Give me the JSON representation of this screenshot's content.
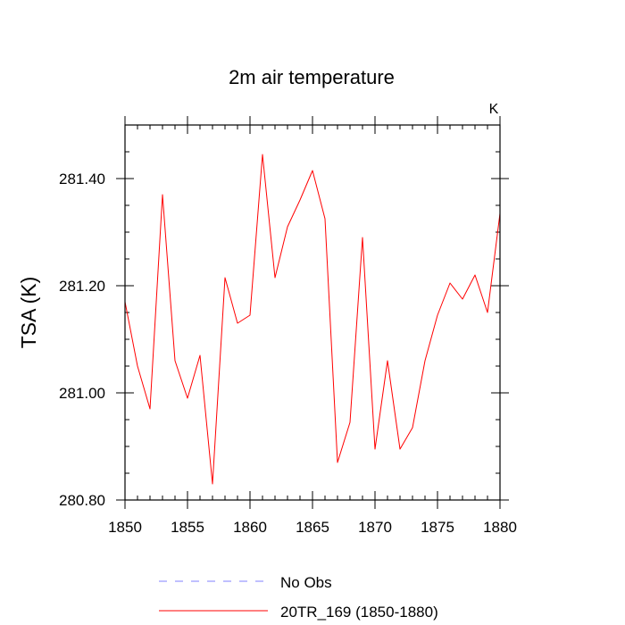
{
  "chart_data": {
    "type": "line",
    "title": "2m air temperature",
    "units_label": "K",
    "ylabel": "TSA  (K)",
    "xlabel": "",
    "xlim": [
      1850,
      1880
    ],
    "ylim": [
      280.8,
      281.5
    ],
    "x_ticks": [
      1850,
      1855,
      1860,
      1865,
      1870,
      1875,
      1880
    ],
    "x_tick_labels": [
      "1850",
      "1855",
      "1860",
      "1865",
      "1870",
      "1875",
      "1880"
    ],
    "y_ticks": [
      280.8,
      281.0,
      281.2,
      281.4
    ],
    "y_tick_labels": [
      "280.80",
      "281.00",
      "281.20",
      "281.40"
    ],
    "grid": false,
    "legend_position": "bottom",
    "series": [
      {
        "name": "20TR_169 (1850-1880)",
        "color": "#ff0000",
        "style": "solid",
        "x": [
          1850,
          1851,
          1852,
          1853,
          1854,
          1855,
          1856,
          1857,
          1858,
          1859,
          1860,
          1861,
          1862,
          1863,
          1864,
          1865,
          1866,
          1867,
          1868,
          1869,
          1870,
          1871,
          1872,
          1873,
          1874,
          1875,
          1876,
          1877,
          1878,
          1879,
          1880
        ],
        "values": [
          281.17,
          281.05,
          280.97,
          281.37,
          281.06,
          280.99,
          281.07,
          280.83,
          281.215,
          281.13,
          281.145,
          281.445,
          281.215,
          281.31,
          281.36,
          281.415,
          281.325,
          280.87,
          280.945,
          281.29,
          280.895,
          281.06,
          280.895,
          280.935,
          281.06,
          281.145,
          281.205,
          281.175,
          281.22,
          281.15,
          281.335
        ]
      }
    ],
    "legend": [
      {
        "label": "No Obs",
        "color": "#8080ff",
        "style": "dashed"
      },
      {
        "label": "20TR_169 (1850-1880)",
        "color": "#ff0000",
        "style": "solid"
      }
    ]
  }
}
